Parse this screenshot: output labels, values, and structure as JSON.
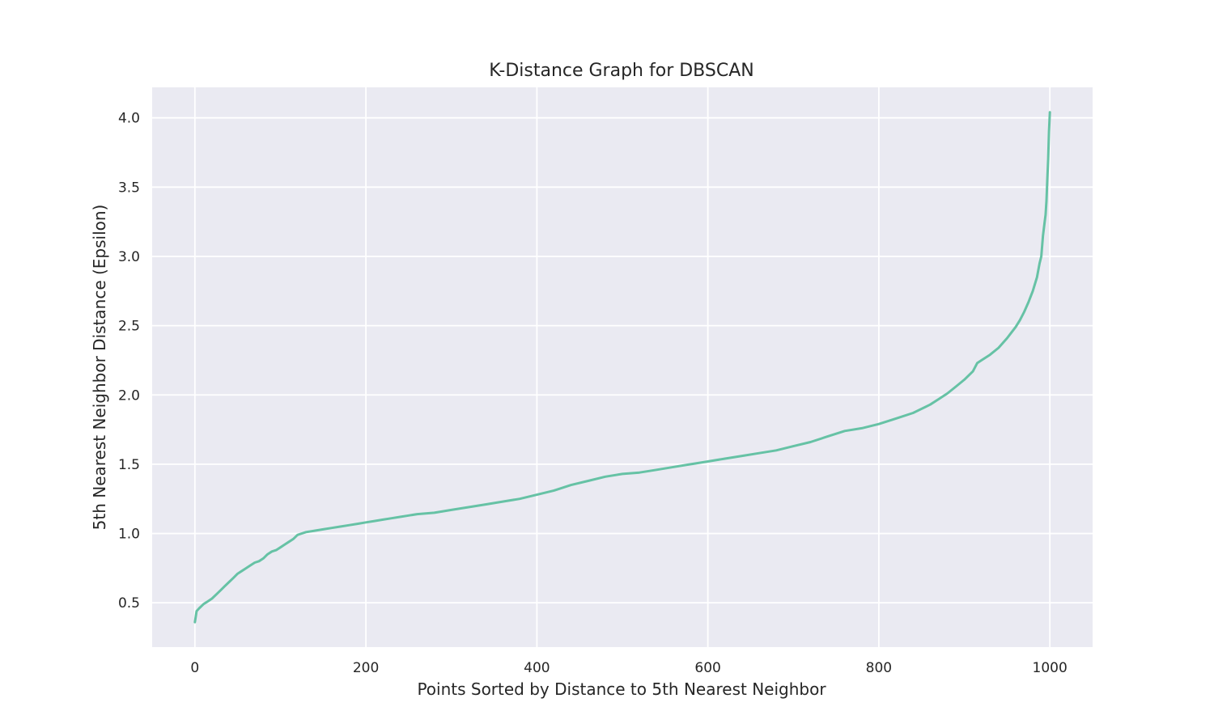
{
  "chart_data": {
    "type": "line",
    "title": "K-Distance Graph for DBSCAN",
    "xlabel": "Points Sorted by Distance to 5th Nearest Neighbor",
    "ylabel": "5th Nearest Neighbor Distance (Epsilon)",
    "xlim": [
      -50,
      1050
    ],
    "ylim": [
      0.18,
      4.22
    ],
    "xticks": [
      0,
      200,
      400,
      600,
      800,
      1000
    ],
    "xtick_labels": [
      "0",
      "200",
      "400",
      "600",
      "800",
      "1000"
    ],
    "yticks": [
      0.5,
      1.0,
      1.5,
      2.0,
      2.5,
      3.0,
      3.5,
      4.0
    ],
    "ytick_labels": [
      "0.5",
      "1.0",
      "1.5",
      "2.0",
      "2.5",
      "3.0",
      "3.5",
      "4.0"
    ],
    "grid": true,
    "colors": {
      "line": "#66c2a5",
      "background": "#eaeaf2",
      "grid": "#ffffff"
    },
    "series": [
      {
        "x": [
          0,
          1,
          2,
          5,
          10,
          15,
          20,
          25,
          30,
          35,
          40,
          45,
          50,
          55,
          60,
          65,
          70,
          75,
          80,
          85,
          90,
          95,
          100,
          105,
          110,
          115,
          120,
          125,
          130,
          140,
          150,
          160,
          170,
          180,
          190,
          200,
          210,
          220,
          230,
          240,
          250,
          260,
          270,
          280,
          290,
          300,
          320,
          340,
          360,
          380,
          400,
          420,
          440,
          460,
          480,
          500,
          520,
          540,
          560,
          580,
          600,
          620,
          640,
          660,
          680,
          700,
          720,
          740,
          760,
          780,
          800,
          820,
          840,
          860,
          870,
          880,
          890,
          900,
          910,
          915,
          920,
          930,
          940,
          950,
          955,
          960,
          965,
          970,
          975,
          980,
          985,
          988,
          990,
          992,
          994,
          995,
          996,
          997,
          998,
          999,
          1000
        ],
        "y": [
          0.36,
          0.4,
          0.44,
          0.46,
          0.49,
          0.51,
          0.53,
          0.56,
          0.59,
          0.62,
          0.65,
          0.68,
          0.71,
          0.73,
          0.75,
          0.77,
          0.79,
          0.8,
          0.82,
          0.85,
          0.87,
          0.88,
          0.9,
          0.92,
          0.94,
          0.96,
          0.99,
          1.0,
          1.01,
          1.02,
          1.03,
          1.04,
          1.05,
          1.06,
          1.07,
          1.08,
          1.09,
          1.1,
          1.11,
          1.12,
          1.13,
          1.14,
          1.145,
          1.15,
          1.16,
          1.17,
          1.19,
          1.21,
          1.23,
          1.25,
          1.28,
          1.31,
          1.35,
          1.38,
          1.41,
          1.43,
          1.44,
          1.46,
          1.48,
          1.5,
          1.52,
          1.54,
          1.56,
          1.58,
          1.6,
          1.63,
          1.66,
          1.7,
          1.74,
          1.76,
          1.79,
          1.83,
          1.87,
          1.93,
          1.97,
          2.01,
          2.06,
          2.11,
          2.17,
          2.23,
          2.25,
          2.29,
          2.34,
          2.41,
          2.45,
          2.49,
          2.54,
          2.6,
          2.67,
          2.75,
          2.85,
          2.95,
          3.0,
          3.15,
          3.25,
          3.3,
          3.4,
          3.55,
          3.7,
          3.9,
          4.04
        ]
      }
    ]
  }
}
